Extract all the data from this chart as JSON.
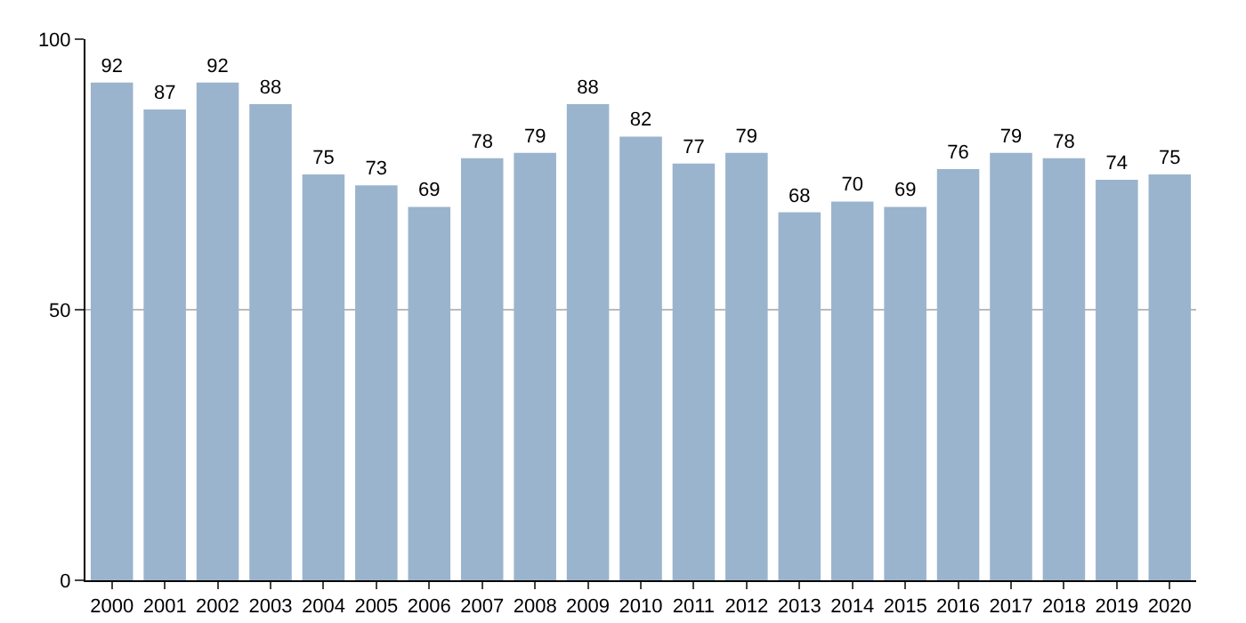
{
  "chart_data": {
    "type": "bar",
    "categories": [
      "2000",
      "2001",
      "2002",
      "2003",
      "2004",
      "2005",
      "2006",
      "2007",
      "2008",
      "2009",
      "2010",
      "2011",
      "2012",
      "2013",
      "2014",
      "2015",
      "2016",
      "2017",
      "2018",
      "2019",
      "2020"
    ],
    "values": [
      92,
      87,
      92,
      88,
      75,
      73,
      69,
      78,
      79,
      88,
      82,
      77,
      79,
      68,
      70,
      69,
      76,
      79,
      78,
      74,
      75
    ],
    "color": "#9bb4cd",
    "ylim": [
      0,
      100
    ],
    "yticks": [
      0,
      50,
      100
    ],
    "grid": "y",
    "data_labels": true
  }
}
